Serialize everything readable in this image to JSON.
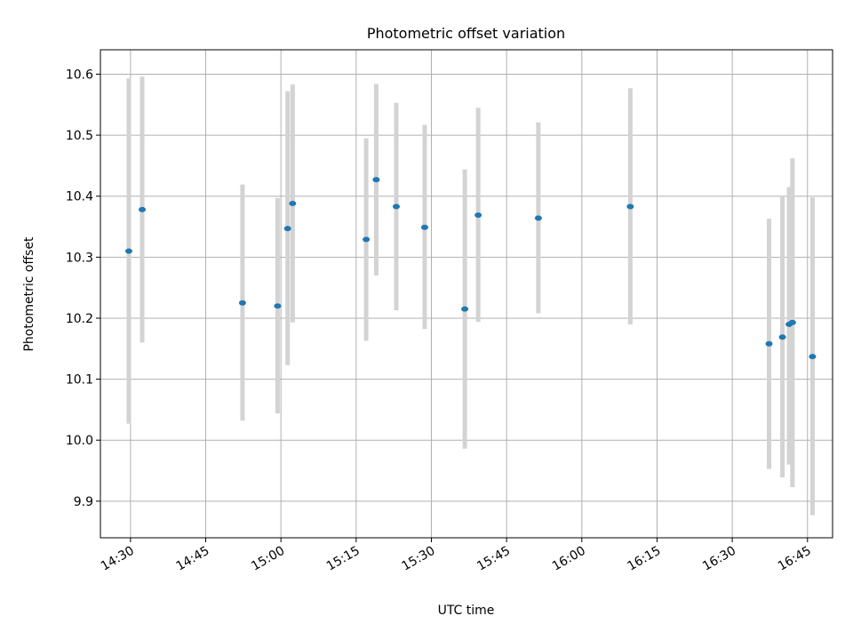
{
  "chart_data": {
    "type": "scatter",
    "title": "Photometric offset variation",
    "xlabel": "UTC time",
    "ylabel": "Photometric offset",
    "x_axis_type": "time",
    "xlim": [
      "14:24",
      "16:50"
    ],
    "ylim": [
      9.84,
      10.64
    ],
    "xticks": [
      "14:30",
      "14:45",
      "15:00",
      "15:15",
      "15:30",
      "15:45",
      "16:00",
      "16:15",
      "16:30",
      "16:45"
    ],
    "yticks": [
      "9.9",
      "10.0",
      "10.1",
      "10.2",
      "10.3",
      "10.4",
      "10.5",
      "10.6"
    ],
    "grid": true,
    "point_color": "#1f77b4",
    "errorbar_color": "#d3d3d3",
    "points": [
      {
        "time": "14:29:40",
        "y": 10.31,
        "ylow": 10.027,
        "yhigh": 10.593
      },
      {
        "time": "14:32:20",
        "y": 10.378,
        "ylow": 10.16,
        "yhigh": 10.596
      },
      {
        "time": "14:52:20",
        "y": 10.225,
        "ylow": 10.032,
        "yhigh": 10.419
      },
      {
        "time": "14:59:20",
        "y": 10.22,
        "ylow": 10.044,
        "yhigh": 10.397
      },
      {
        "time": "15:01:20",
        "y": 10.347,
        "ylow": 10.123,
        "yhigh": 10.572
      },
      {
        "time": "15:02:20",
        "y": 10.388,
        "ylow": 10.193,
        "yhigh": 10.583
      },
      {
        "time": "15:17:00",
        "y": 10.329,
        "ylow": 10.163,
        "yhigh": 10.495
      },
      {
        "time": "15:19:00",
        "y": 10.427,
        "ylow": 10.27,
        "yhigh": 10.584
      },
      {
        "time": "15:23:00",
        "y": 10.383,
        "ylow": 10.213,
        "yhigh": 10.553
      },
      {
        "time": "15:28:40",
        "y": 10.349,
        "ylow": 10.182,
        "yhigh": 10.517
      },
      {
        "time": "15:36:40",
        "y": 10.215,
        "ylow": 9.986,
        "yhigh": 10.444
      },
      {
        "time": "15:39:20",
        "y": 10.369,
        "ylow": 10.194,
        "yhigh": 10.545
      },
      {
        "time": "15:51:20",
        "y": 10.364,
        "ylow": 10.208,
        "yhigh": 10.521
      },
      {
        "time": "16:09:40",
        "y": 10.383,
        "ylow": 10.19,
        "yhigh": 10.577
      },
      {
        "time": "16:37:20",
        "y": 10.158,
        "ylow": 9.953,
        "yhigh": 10.363
      },
      {
        "time": "16:40:00",
        "y": 10.169,
        "ylow": 9.939,
        "yhigh": 10.4
      },
      {
        "time": "16:41:20",
        "y": 10.19,
        "ylow": 9.96,
        "yhigh": 10.415
      },
      {
        "time": "16:42:00",
        "y": 10.193,
        "ylow": 9.923,
        "yhigh": 10.462
      },
      {
        "time": "16:46:00",
        "y": 10.137,
        "ylow": 9.877,
        "yhigh": 10.398
      }
    ]
  }
}
